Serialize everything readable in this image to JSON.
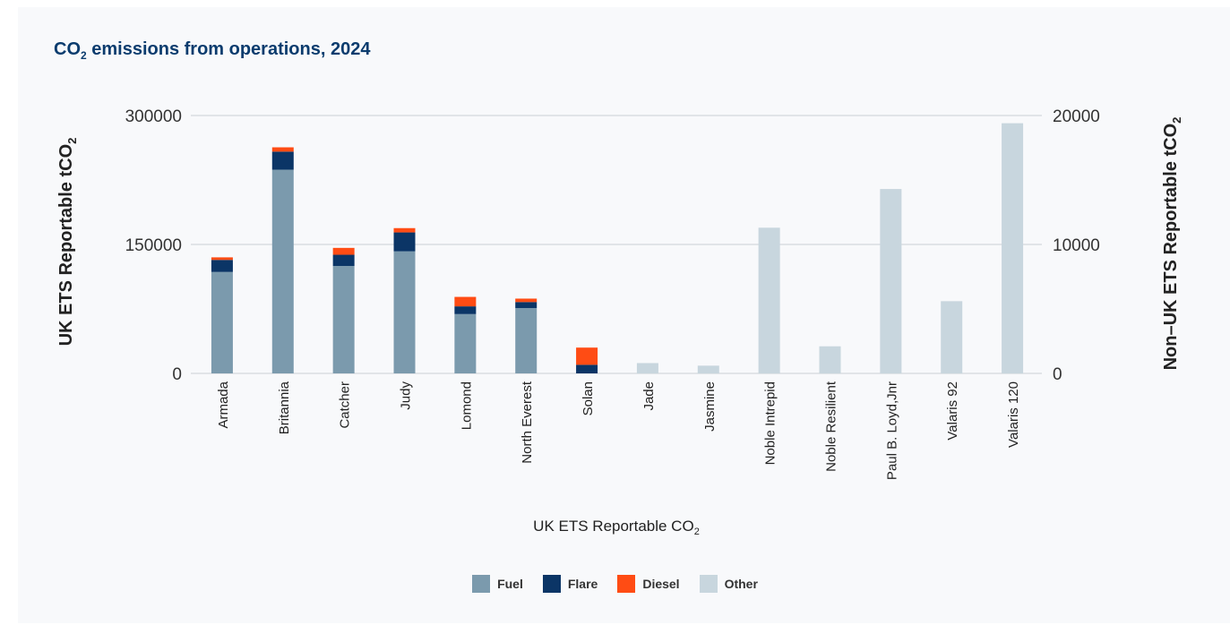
{
  "chart_data": {
    "type": "bar",
    "title": "CO₂ emissions from operations, 2024",
    "xlabel": "UK ETS Reportable CO₂",
    "ylabel_left": "UK ETS Reportable tCO₂",
    "ylabel_right": "Non–UK ETS Reportable tCO₂",
    "y_left": {
      "lim": [
        0,
        300000
      ],
      "ticks": [
        "0",
        "150000",
        "300000"
      ]
    },
    "y_right": {
      "lim": [
        0,
        20000
      ],
      "ticks": [
        "0",
        "10000",
        "20000"
      ]
    },
    "categories": [
      "Armada",
      "Britannia",
      "Catcher",
      "Judy",
      "Lomond",
      "North Everest",
      "Solan",
      "Jade",
      "Jasmine",
      "Noble Intrepid",
      "Noble Resilient",
      "Paul B. Loyd,Jnr",
      "Valaris 92",
      "Valaris 120"
    ],
    "series": [
      {
        "name": "Fuel",
        "color": "#7b9aad",
        "axis": "left",
        "values": [
          118000,
          237000,
          125000,
          142000,
          69000,
          76000,
          0,
          null,
          null,
          null,
          null,
          null,
          null,
          null
        ]
      },
      {
        "name": "Flare",
        "color": "#0b3566",
        "axis": "left",
        "values": [
          14000,
          21000,
          13000,
          22000,
          9000,
          7000,
          10000,
          null,
          null,
          null,
          null,
          null,
          null,
          null
        ]
      },
      {
        "name": "Diesel",
        "color": "#ff4c14",
        "axis": "left",
        "values": [
          3000,
          5000,
          8000,
          5000,
          11000,
          4000,
          20000,
          null,
          null,
          null,
          null,
          null,
          null,
          null
        ]
      },
      {
        "name": "Other",
        "color": "#c8d6de",
        "axis": "right",
        "values": [
          null,
          null,
          null,
          null,
          null,
          null,
          null,
          800,
          600,
          11300,
          2100,
          14300,
          5600,
          19400
        ]
      }
    ],
    "grid": true,
    "legend_position": "bottom"
  }
}
